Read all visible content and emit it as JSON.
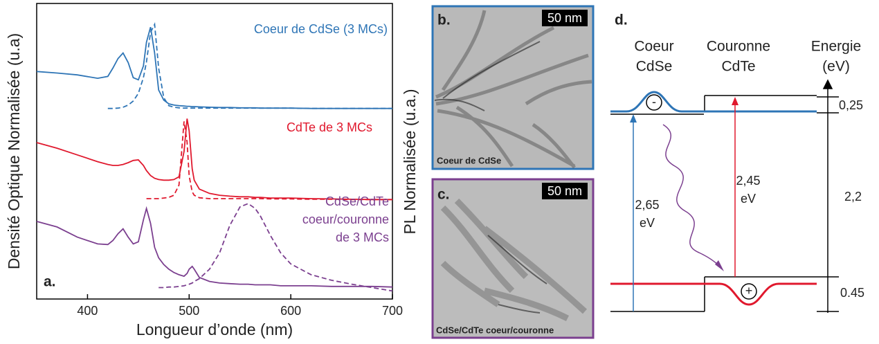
{
  "chart_data": {
    "type": "line",
    "xlabel": "Longueur d’onde (nm)",
    "ylabel": "Densité Optique Normalisée (u.a)",
    "y2label": "PL Normalisée (u.a.)",
    "panel_label": "a.",
    "xlim": [
      350,
      700
    ],
    "xticks": [
      400,
      500,
      600,
      700
    ],
    "ylim": [
      5,
      101
    ],
    "x": [
      350,
      370,
      390,
      410,
      420,
      425,
      430,
      435,
      440,
      445,
      450,
      455,
      458,
      462,
      466,
      470,
      475,
      480,
      485,
      490,
      495,
      498,
      500,
      503,
      505,
      510,
      520,
      530,
      540,
      550,
      558,
      565,
      570,
      580,
      590,
      600,
      620,
      640,
      660,
      680,
      700
    ],
    "series": [
      {
        "color": "#2e75b6",
        "line_style": "solid",
        "values": [
          78.9,
          78.4,
          77.8,
          76.7,
          77.3,
          80.0,
          83.1,
          84.9,
          81.8,
          76.9,
          76.2,
          80.7,
          88.4,
          93.3,
          84.9,
          72.9,
          69.6,
          68.4,
          68.0,
          67.8,
          67.7,
          67.6,
          67.6,
          67.5,
          67.5,
          67.4,
          67.3,
          67.2,
          67.2,
          67.1,
          67.1,
          67.1,
          67.0,
          67.0,
          67.0,
          67.0,
          66.9,
          66.9,
          66.9,
          66.9,
          66.9
        ]
      },
      {
        "color": "#2e75b6",
        "line_style": "dashed",
        "values": [
          null,
          null,
          null,
          null,
          66.9,
          66.9,
          67.0,
          67.3,
          68.0,
          69.3,
          71.8,
          76.9,
          82.0,
          91.6,
          94.2,
          80.0,
          70.4,
          67.8,
          67.3,
          67.1,
          67.0,
          67.0,
          67.0,
          67.0,
          67.0,
          67.0,
          67.0,
          67.0,
          67.0,
          67.0,
          67.0,
          67.0,
          67.0,
          67.0,
          67.0,
          67.0,
          66.9,
          66.9,
          66.9,
          66.9,
          66.9
        ]
      },
      {
        "color": "#e0182d",
        "line_style": "solid",
        "values": [
          55.8,
          54.0,
          51.8,
          49.6,
          48.7,
          48.4,
          48.4,
          48.7,
          49.3,
          50.0,
          50.2,
          48.4,
          46.7,
          45.1,
          44.2,
          43.8,
          43.6,
          43.6,
          43.8,
          44.7,
          52.9,
          63.6,
          59.6,
          47.3,
          43.6,
          40.7,
          39.3,
          38.7,
          38.4,
          38.2,
          38.2,
          38.0,
          38.0,
          37.8,
          37.8,
          37.8,
          37.6,
          37.5,
          37.4,
          37.3,
          37.3
        ]
      },
      {
        "color": "#e0182d",
        "line_style": "dashed",
        "values": [
          null,
          null,
          null,
          null,
          null,
          null,
          null,
          null,
          null,
          null,
          null,
          null,
          37.6,
          37.6,
          37.6,
          37.6,
          37.8,
          38.0,
          38.7,
          42.0,
          62.7,
          56.0,
          45.0,
          39.8,
          38.7,
          37.9,
          37.6,
          37.6,
          37.6,
          37.6,
          37.6,
          37.6,
          37.6,
          37.5,
          37.5,
          37.5,
          37.4,
          37.4,
          37.3,
          37.3,
          37.3
        ]
      },
      {
        "color": "#7b3f8f",
        "line_style": "solid",
        "values": [
          30.2,
          28.4,
          25.1,
          22.9,
          22.7,
          24.0,
          26.2,
          27.8,
          25.1,
          22.9,
          23.6,
          30.7,
          34.4,
          29.6,
          21.8,
          18.4,
          16.2,
          14.7,
          13.6,
          12.9,
          12.4,
          13.3,
          14.7,
          15.6,
          14.7,
          12.0,
          10.7,
          10.2,
          10.0,
          9.8,
          9.8,
          9.6,
          9.6,
          9.6,
          9.3,
          9.3,
          9.3,
          9.1,
          9.1,
          9.1,
          8.9
        ]
      },
      {
        "color": "#7b3f8f",
        "line_style": "dashed",
        "values": [
          null,
          null,
          null,
          null,
          null,
          null,
          null,
          null,
          null,
          null,
          null,
          null,
          null,
          null,
          null,
          8.7,
          8.7,
          8.9,
          8.9,
          9.1,
          9.3,
          9.6,
          9.8,
          10.2,
          10.7,
          11.6,
          14.7,
          20.0,
          28.9,
          34.9,
          36.0,
          34.4,
          32.0,
          25.6,
          20.0,
          16.4,
          12.9,
          11.1,
          9.8,
          8.7,
          7.6
        ]
      }
    ],
    "annotations": [
      {
        "lines": [
          "Coeur de CdSe (3 MCs)"
        ],
        "color": "#2e75b6"
      },
      {
        "lines": [
          "CdTe de 3 MCs"
        ],
        "color": "#e0182d"
      },
      {
        "lines": [
          "CdSe/CdTe",
          "coeur/couronne",
          "de 3 MCs"
        ],
        "color": "#7b3f8f"
      }
    ]
  },
  "panels": {
    "b": {
      "label": "b.",
      "scale_bar": "50 nm",
      "caption": "Coeur de CdSe"
    },
    "c": {
      "label": "c.",
      "scale_bar": "50 nm",
      "caption": "CdSe/CdTe coeur/couronne"
    }
  },
  "diagram": {
    "label": "d.",
    "core": [
      "Coeur",
      "CdSe"
    ],
    "crown": [
      "Couronne",
      "CdTe"
    ],
    "energy_axis": [
      "Energie",
      "(eV)"
    ],
    "electron": "-",
    "hole": "+",
    "core_gap": [
      "2,65",
      "eV"
    ],
    "crown_gap": [
      "2,45",
      "eV"
    ],
    "offsets": [
      "0,25",
      "2,2",
      "0.45"
    ]
  }
}
